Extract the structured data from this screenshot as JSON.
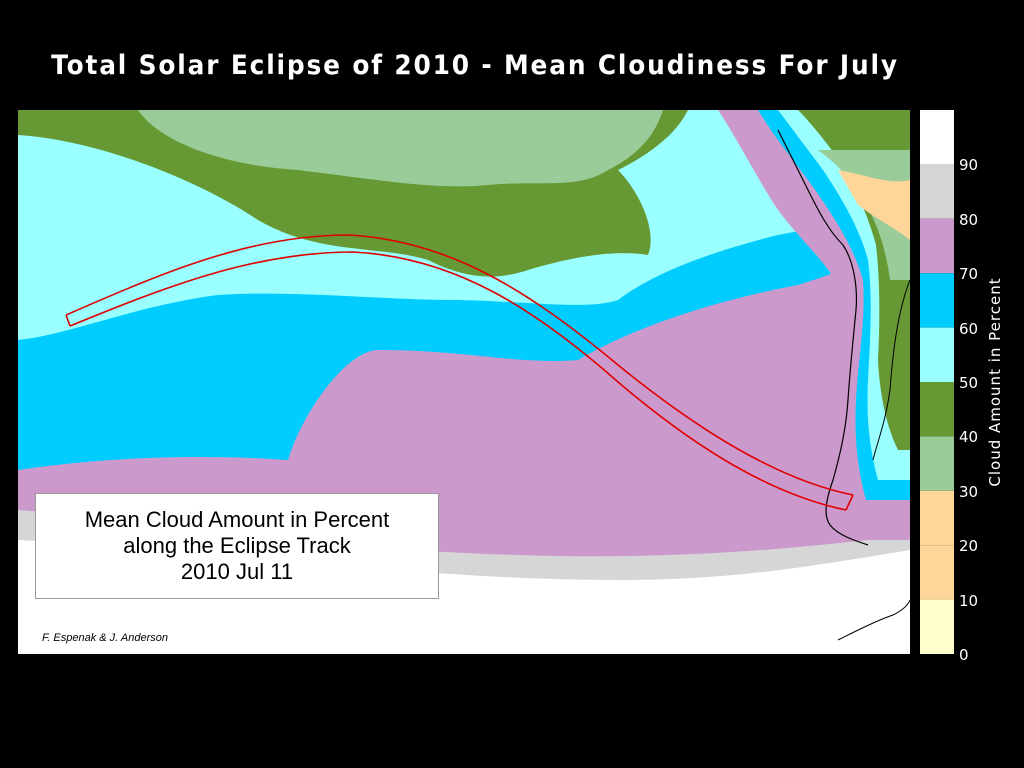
{
  "title": "Total Solar Eclipse of 2010 - Mean Cloudiness For July",
  "infobox": {
    "line1": "Mean Cloud Amount in Percent",
    "line2": "along the Eclipse Track",
    "line3": "2010 Jul  11"
  },
  "credit": "F. Espenak & J. Anderson",
  "legend": {
    "label": "Cloud Amount in Percent",
    "ticks": [
      "90",
      "80",
      "70",
      "60",
      "50",
      "40",
      "30",
      "20",
      "10",
      "0"
    ],
    "bands": [
      {
        "range": "90-100",
        "color": "#ffffff"
      },
      {
        "range": "80-90",
        "color": "#d6d6d6"
      },
      {
        "range": "70-80",
        "color": "#cc99cc"
      },
      {
        "range": "60-70",
        "color": "#00ccff"
      },
      {
        "range": "50-60",
        "color": "#99ffff"
      },
      {
        "range": "40-50",
        "color": "#669933"
      },
      {
        "range": "30-40",
        "color": "#99cc99"
      },
      {
        "range": "20-30",
        "color": "#ffd699"
      },
      {
        "range": "10-20",
        "color": "#ffd699"
      },
      {
        "range": "0-10",
        "color": "#ffffcc"
      }
    ]
  },
  "colors": {
    "track": "#e00000",
    "coastline": "#000000"
  }
}
